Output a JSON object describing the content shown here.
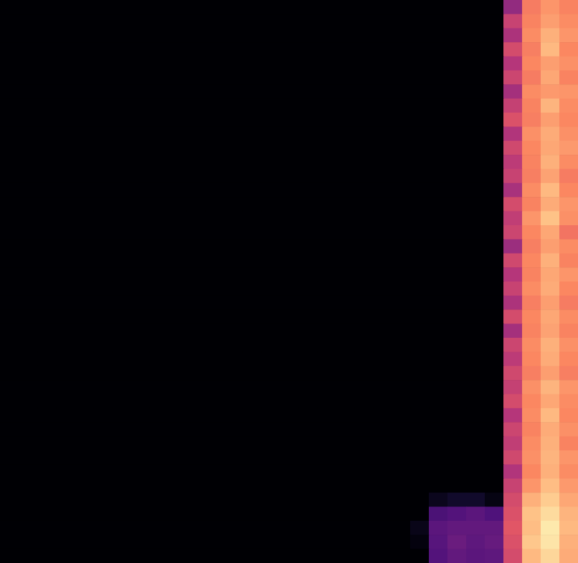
{
  "chart_data": {
    "type": "heatmap",
    "tick_labels": false,
    "cells": [
      [
        0,
        0,
        0,
        0,
        0,
        0,
        0,
        0,
        0,
        0,
        0,
        0,
        0,
        0,
        0,
        0,
        0,
        0,
        0,
        0,
        0,
        0,
        0,
        0,
        0,
        0,
        0,
        0.42,
        0.72,
        0.78,
        0.74
      ],
      [
        0,
        0,
        0,
        0,
        0,
        0,
        0,
        0,
        0,
        0,
        0,
        0,
        0,
        0,
        0,
        0,
        0,
        0,
        0,
        0,
        0,
        0,
        0,
        0,
        0,
        0,
        0,
        0.55,
        0.74,
        0.8,
        0.76
      ],
      [
        0,
        0,
        0,
        0,
        0,
        0,
        0,
        0,
        0,
        0,
        0,
        0,
        0,
        0,
        0,
        0,
        0,
        0,
        0,
        0,
        0,
        0,
        0,
        0,
        0,
        0,
        0,
        0.48,
        0.76,
        0.84,
        0.78
      ],
      [
        0,
        0,
        0,
        0,
        0,
        0,
        0,
        0,
        0,
        0,
        0,
        0,
        0,
        0,
        0,
        0,
        0,
        0,
        0,
        0,
        0,
        0,
        0,
        0,
        0,
        0,
        0,
        0.58,
        0.73,
        0.86,
        0.75
      ],
      [
        0,
        0,
        0,
        0,
        0,
        0,
        0,
        0,
        0,
        0,
        0,
        0,
        0,
        0,
        0,
        0,
        0,
        0,
        0,
        0,
        0,
        0,
        0,
        0,
        0,
        0,
        0,
        0.5,
        0.75,
        0.8,
        0.77
      ],
      [
        0,
        0,
        0,
        0,
        0,
        0,
        0,
        0,
        0,
        0,
        0,
        0,
        0,
        0,
        0,
        0,
        0,
        0,
        0,
        0,
        0,
        0,
        0,
        0,
        0,
        0,
        0,
        0.56,
        0.72,
        0.82,
        0.74
      ],
      [
        0,
        0,
        0,
        0,
        0,
        0,
        0,
        0,
        0,
        0,
        0,
        0,
        0,
        0,
        0,
        0,
        0,
        0,
        0,
        0,
        0,
        0,
        0,
        0,
        0,
        0,
        0,
        0.46,
        0.76,
        0.79,
        0.78
      ],
      [
        0,
        0,
        0,
        0,
        0,
        0,
        0,
        0,
        0,
        0,
        0,
        0,
        0,
        0,
        0,
        0,
        0,
        0,
        0,
        0,
        0,
        0,
        0,
        0,
        0,
        0,
        0,
        0.54,
        0.74,
        0.85,
        0.76
      ],
      [
        0,
        0,
        0,
        0,
        0,
        0,
        0,
        0,
        0,
        0,
        0,
        0,
        0,
        0,
        0,
        0,
        0,
        0,
        0,
        0,
        0,
        0,
        0,
        0,
        0,
        0,
        0,
        0.6,
        0.73,
        0.8,
        0.75
      ],
      [
        0,
        0,
        0,
        0,
        0,
        0,
        0,
        0,
        0,
        0,
        0,
        0,
        0,
        0,
        0,
        0,
        0,
        0,
        0,
        0,
        0,
        0,
        0,
        0,
        0,
        0,
        0,
        0.49,
        0.77,
        0.83,
        0.77
      ],
      [
        0,
        0,
        0,
        0,
        0,
        0,
        0,
        0,
        0,
        0,
        0,
        0,
        0,
        0,
        0,
        0,
        0,
        0,
        0,
        0,
        0,
        0,
        0,
        0,
        0,
        0,
        0,
        0.57,
        0.75,
        0.82,
        0.79
      ],
      [
        0,
        0,
        0,
        0,
        0,
        0,
        0,
        0,
        0,
        0,
        0,
        0,
        0,
        0,
        0,
        0,
        0,
        0,
        0,
        0,
        0,
        0,
        0,
        0,
        0,
        0,
        0,
        0.52,
        0.74,
        0.84,
        0.76
      ],
      [
        0,
        0,
        0,
        0,
        0,
        0,
        0,
        0,
        0,
        0,
        0,
        0,
        0,
        0,
        0,
        0,
        0,
        0,
        0,
        0,
        0,
        0,
        0,
        0,
        0,
        0,
        0,
        0.55,
        0.73,
        0.81,
        0.72
      ],
      [
        0,
        0,
        0,
        0,
        0,
        0,
        0,
        0,
        0,
        0,
        0,
        0,
        0,
        0,
        0,
        0,
        0,
        0,
        0,
        0,
        0,
        0,
        0,
        0,
        0,
        0,
        0,
        0.47,
        0.76,
        0.86,
        0.75
      ],
      [
        0,
        0,
        0,
        0,
        0,
        0,
        0,
        0,
        0,
        0,
        0,
        0,
        0,
        0,
        0,
        0,
        0,
        0,
        0,
        0,
        0,
        0,
        0,
        0,
        0,
        0,
        0,
        0.58,
        0.74,
        0.83,
        0.78
      ],
      [
        0,
        0,
        0,
        0,
        0,
        0,
        0,
        0,
        0,
        0,
        0,
        0,
        0,
        0,
        0,
        0,
        0,
        0,
        0,
        0,
        0,
        0,
        0,
        0,
        0,
        0,
        0,
        0.53,
        0.78,
        0.88,
        0.77
      ],
      [
        0,
        0,
        0,
        0,
        0,
        0,
        0,
        0,
        0,
        0,
        0,
        0,
        0,
        0,
        0,
        0,
        0,
        0,
        0,
        0,
        0,
        0,
        0,
        0,
        0,
        0,
        0,
        0.56,
        0.75,
        0.82,
        0.7
      ],
      [
        0,
        0,
        0,
        0,
        0,
        0,
        0,
        0,
        0,
        0,
        0,
        0,
        0,
        0,
        0,
        0,
        0,
        0,
        0,
        0,
        0,
        0,
        0,
        0,
        0,
        0,
        0,
        0.44,
        0.73,
        0.8,
        0.76
      ],
      [
        0,
        0,
        0,
        0,
        0,
        0,
        0,
        0,
        0,
        0,
        0,
        0,
        0,
        0,
        0,
        0,
        0,
        0,
        0,
        0,
        0,
        0,
        0,
        0,
        0,
        0,
        0,
        0.57,
        0.75,
        0.84,
        0.74
      ],
      [
        0,
        0,
        0,
        0,
        0,
        0,
        0,
        0,
        0,
        0,
        0,
        0,
        0,
        0,
        0,
        0,
        0,
        0,
        0,
        0,
        0,
        0,
        0,
        0,
        0,
        0,
        0,
        0.5,
        0.74,
        0.82,
        0.78
      ],
      [
        0,
        0,
        0,
        0,
        0,
        0,
        0,
        0,
        0,
        0,
        0,
        0,
        0,
        0,
        0,
        0,
        0,
        0,
        0,
        0,
        0,
        0,
        0,
        0,
        0,
        0,
        0,
        0.55,
        0.76,
        0.83,
        0.75
      ],
      [
        0,
        0,
        0,
        0,
        0,
        0,
        0,
        0,
        0,
        0,
        0,
        0,
        0,
        0,
        0,
        0,
        0,
        0,
        0,
        0,
        0,
        0,
        0,
        0,
        0,
        0,
        0,
        0.48,
        0.73,
        0.8,
        0.72
      ],
      [
        0,
        0,
        0,
        0,
        0,
        0,
        0,
        0,
        0,
        0,
        0,
        0,
        0,
        0,
        0,
        0,
        0,
        0,
        0,
        0,
        0,
        0,
        0,
        0,
        0,
        0,
        0,
        0.58,
        0.75,
        0.82,
        0.76
      ],
      [
        0,
        0,
        0,
        0,
        0,
        0,
        0,
        0,
        0,
        0,
        0,
        0,
        0,
        0,
        0,
        0,
        0,
        0,
        0,
        0,
        0,
        0,
        0,
        0,
        0,
        0,
        0,
        0.46,
        0.74,
        0.81,
        0.74
      ],
      [
        0,
        0,
        0,
        0,
        0,
        0,
        0,
        0,
        0,
        0,
        0,
        0,
        0,
        0,
        0,
        0,
        0,
        0,
        0,
        0,
        0,
        0,
        0,
        0,
        0,
        0,
        0,
        0.56,
        0.76,
        0.84,
        0.77
      ],
      [
        0,
        0,
        0,
        0,
        0,
        0,
        0,
        0,
        0,
        0,
        0,
        0,
        0,
        0,
        0,
        0,
        0,
        0,
        0,
        0,
        0,
        0,
        0,
        0,
        0,
        0,
        0,
        0.52,
        0.75,
        0.83,
        0.75
      ],
      [
        0,
        0,
        0,
        0,
        0,
        0,
        0,
        0,
        0,
        0,
        0,
        0,
        0,
        0,
        0,
        0,
        0,
        0,
        0,
        0,
        0,
        0,
        0,
        0,
        0,
        0,
        0,
        0.57,
        0.73,
        0.8,
        0.73
      ],
      [
        0,
        0,
        0,
        0,
        0,
        0,
        0,
        0,
        0,
        0,
        0,
        0,
        0,
        0,
        0,
        0,
        0,
        0,
        0,
        0,
        0,
        0,
        0,
        0,
        0,
        0,
        0,
        0.54,
        0.77,
        0.85,
        0.78
      ],
      [
        0,
        0,
        0,
        0,
        0,
        0,
        0,
        0,
        0,
        0,
        0,
        0,
        0,
        0,
        0,
        0,
        0,
        0,
        0,
        0,
        0,
        0,
        0,
        0,
        0,
        0,
        0,
        0.58,
        0.75,
        0.82,
        0.76
      ],
      [
        0,
        0,
        0,
        0,
        0,
        0,
        0,
        0,
        0,
        0,
        0,
        0,
        0,
        0,
        0,
        0,
        0,
        0,
        0,
        0,
        0,
        0,
        0,
        0,
        0,
        0,
        0,
        0.5,
        0.76,
        0.86,
        0.75
      ],
      [
        0,
        0,
        0,
        0,
        0,
        0,
        0,
        0,
        0,
        0,
        0,
        0,
        0,
        0,
        0,
        0,
        0,
        0,
        0,
        0,
        0,
        0,
        0,
        0,
        0,
        0,
        0,
        0.56,
        0.74,
        0.83,
        0.77
      ],
      [
        0,
        0,
        0,
        0,
        0,
        0,
        0,
        0,
        0,
        0,
        0,
        0,
        0,
        0,
        0,
        0,
        0,
        0,
        0,
        0,
        0,
        0,
        0,
        0,
        0,
        0,
        0,
        0.53,
        0.76,
        0.84,
        0.74
      ],
      [
        0,
        0,
        0,
        0,
        0,
        0,
        0,
        0,
        0,
        0,
        0,
        0,
        0,
        0,
        0,
        0,
        0,
        0,
        0,
        0,
        0,
        0,
        0,
        0,
        0,
        0,
        0,
        0.57,
        0.77,
        0.85,
        0.78
      ],
      [
        0,
        0,
        0,
        0,
        0,
        0,
        0,
        0,
        0,
        0,
        0,
        0,
        0,
        0,
        0,
        0,
        0,
        0,
        0,
        0,
        0,
        0,
        0,
        0,
        0,
        0,
        0,
        0.49,
        0.75,
        0.84,
        0.76
      ],
      [
        0,
        0,
        0,
        0,
        0,
        0,
        0,
        0,
        0,
        0,
        0,
        0,
        0,
        0,
        0,
        0,
        0,
        0,
        0,
        0,
        0,
        0,
        0,
        0,
        0,
        0,
        0,
        0.55,
        0.78,
        0.87,
        0.79
      ],
      [
        0,
        0,
        0,
        0,
        0,
        0,
        0,
        0,
        0,
        0,
        0,
        0,
        0,
        0,
        0,
        0,
        0,
        0,
        0,
        0,
        0,
        0,
        0,
        0.05,
        0.08,
        0.08,
        0.03,
        0.58,
        0.84,
        0.9,
        0.82
      ],
      [
        0,
        0,
        0,
        0,
        0,
        0,
        0,
        0,
        0,
        0,
        0,
        0,
        0,
        0,
        0,
        0,
        0,
        0,
        0,
        0,
        0,
        0,
        0,
        0.24,
        0.26,
        0.28,
        0.25,
        0.6,
        0.88,
        0.93,
        0.85
      ],
      [
        0,
        0,
        0,
        0,
        0,
        0,
        0,
        0,
        0,
        0,
        0,
        0,
        0,
        0,
        0,
        0,
        0,
        0,
        0,
        0,
        0,
        0,
        0.04,
        0.28,
        0.3,
        0.3,
        0.3,
        0.62,
        0.87,
        0.96,
        0.86
      ],
      [
        0,
        0,
        0,
        0,
        0,
        0,
        0,
        0,
        0,
        0,
        0,
        0,
        0,
        0,
        0,
        0,
        0,
        0,
        0,
        0,
        0,
        0,
        0.02,
        0.27,
        0.32,
        0.29,
        0.31,
        0.6,
        0.89,
        0.95,
        0.84
      ],
      [
        0,
        0,
        0,
        0,
        0,
        0,
        0,
        0,
        0,
        0,
        0,
        0,
        0,
        0,
        0,
        0,
        0,
        0,
        0,
        0,
        0,
        0,
        0,
        0.26,
        0.3,
        0.28,
        0.29,
        0.58,
        0.86,
        0.92,
        0.83
      ]
    ]
  }
}
